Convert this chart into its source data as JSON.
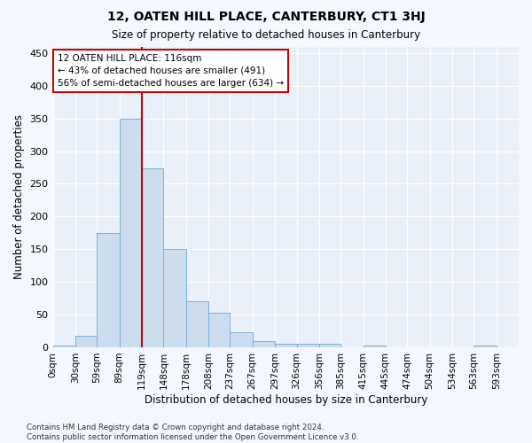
{
  "title": "12, OATEN HILL PLACE, CANTERBURY, CT1 3HJ",
  "subtitle": "Size of property relative to detached houses in Canterbury",
  "xlabel": "Distribution of detached houses by size in Canterbury",
  "ylabel": "Number of detached properties",
  "bar_color": "#ccddf0",
  "bar_edge_color": "#7aafd4",
  "bg_color": "#eaf0fa",
  "fig_bg_color": "#f4f7fd",
  "bin_edges": [
    0,
    30,
    59,
    89,
    119,
    148,
    178,
    208,
    237,
    267,
    297,
    326,
    356,
    385,
    415,
    445,
    474,
    504,
    534,
    563,
    593,
    623
  ],
  "bin_labels": [
    "0sqm",
    "30sqm",
    "59sqm",
    "89sqm",
    "119sqm",
    "148sqm",
    "178sqm",
    "208sqm",
    "237sqm",
    "267sqm",
    "297sqm",
    "326sqm",
    "356sqm",
    "385sqm",
    "415sqm",
    "445sqm",
    "474sqm",
    "504sqm",
    "534sqm",
    "563sqm",
    "593sqm"
  ],
  "bar_heights": [
    3,
    17,
    175,
    350,
    273,
    150,
    70,
    53,
    23,
    9,
    5,
    6,
    6,
    0,
    2,
    0,
    0,
    0,
    0,
    2,
    0
  ],
  "vline_x": 119,
  "vline_color": "#cc0000",
  "ylim": [
    0,
    460
  ],
  "yticks": [
    0,
    50,
    100,
    150,
    200,
    250,
    300,
    350,
    400,
    450
  ],
  "annotation_line1": "12 OATEN HILL PLACE: 116sqm",
  "annotation_line2": "← 43% of detached houses are smaller (491)",
  "annotation_line3": "56% of semi-detached houses are larger (634) →",
  "annotation_box_edgecolor": "#cc0000",
  "footer_line1": "Contains HM Land Registry data © Crown copyright and database right 2024.",
  "footer_line2": "Contains public sector information licensed under the Open Government Licence v3.0."
}
